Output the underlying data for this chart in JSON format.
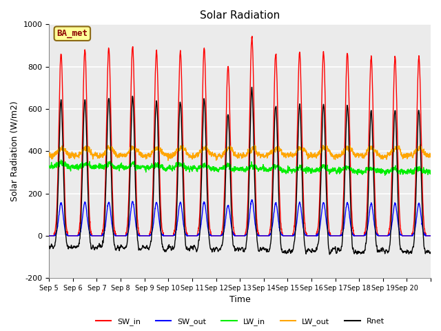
{
  "title": "Solar Radiation",
  "xlabel": "Time",
  "ylabel": "Solar Radiation (W/m2)",
  "ylim": [
    -200,
    1000
  ],
  "yticks": [
    -200,
    0,
    200,
    400,
    600,
    800,
    1000
  ],
  "annotation_text": "BA_met",
  "annotation_color": "#8B0000",
  "annotation_bg": "#FFFF99",
  "annotation_border": "#8B6914",
  "line_colors": {
    "SW_in": "red",
    "SW_out": "blue",
    "LW_in": "#00ee00",
    "LW_out": "orange",
    "Rnet": "black"
  },
  "tick_labels": [
    "Sep 5",
    "Sep 6",
    "Sep 7",
    "Sep 8",
    "Sep 9",
    "Sep 10",
    "Sep 11",
    "Sep 12",
    "Sep 13",
    "Sep 14",
    "Sep 15",
    "Sep 16",
    "Sep 17",
    "Sep 18",
    "Sep 19",
    "Sep 20"
  ],
  "n_days": 16,
  "points_per_day": 144,
  "bg_color": "#ebebeb",
  "grid_color": "white"
}
